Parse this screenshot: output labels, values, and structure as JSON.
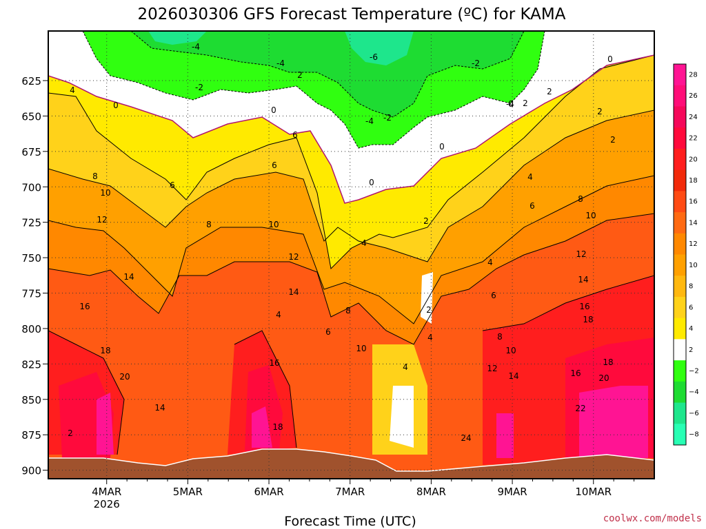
{
  "chart_data": {
    "type": "heatmap",
    "title": "2026030306 GFS Forecast Temperature (ºC) for KAMA",
    "xlabel": "Forecast Time (UTC)",
    "ylabel": "",
    "x_ticks": [
      "4MAR",
      "5MAR",
      "6MAR",
      "7MAR",
      "8MAR",
      "9MAR",
      "10MAR"
    ],
    "x_year": "2026",
    "x_range_days": [
      3.28,
      10.75
    ],
    "y_range": [
      590,
      906
    ],
    "y_ticks": [
      "625",
      "650",
      "675",
      "700",
      "725",
      "750",
      "775",
      "800",
      "825",
      "850",
      "875",
      "900"
    ],
    "colorbar_levels": [
      "28",
      "26",
      "24",
      "22",
      "20",
      "18",
      "16",
      "14",
      "12",
      "10",
      "8",
      "6",
      "4",
      "2",
      "−2",
      "−4",
      "−6",
      "−8"
    ],
    "colorbar_colors": [
      "#ff1493",
      "#ff0d78",
      "#f5085a",
      "#ff0a3c",
      "#ff1e1e",
      "#f22a0a",
      "#ff4b14",
      "#ff6a12",
      "#ff8800",
      "#ffa000",
      "#ffb80f",
      "#ffd21a",
      "#ffea00",
      "#ffffff",
      "#30ff10",
      "#1edc32",
      "#1ee68c",
      "#28ffb4"
    ],
    "contour_labels": [
      "-4",
      "-4",
      "-2",
      "-6",
      "-4",
      "-2",
      "-4",
      "-2",
      "2",
      "0",
      "0",
      "0",
      "0",
      "2",
      "4",
      "6",
      "8",
      "10",
      "12",
      "14",
      "16",
      "18",
      "20",
      "2",
      "6",
      "14",
      "4",
      "6",
      "8",
      "10",
      "12",
      "14",
      "16",
      "18",
      "2",
      "4",
      "6",
      "8",
      "10",
      "4",
      "0",
      "2",
      "2",
      "4",
      "4",
      "6",
      "8",
      "10",
      "12",
      "14",
      "16",
      "18",
      "0",
      "2",
      "2",
      "4",
      "6",
      "8",
      "10",
      "12",
      "14",
      "16",
      "18",
      "20",
      "22",
      "24"
    ],
    "credit": "coolwx.com/models"
  }
}
